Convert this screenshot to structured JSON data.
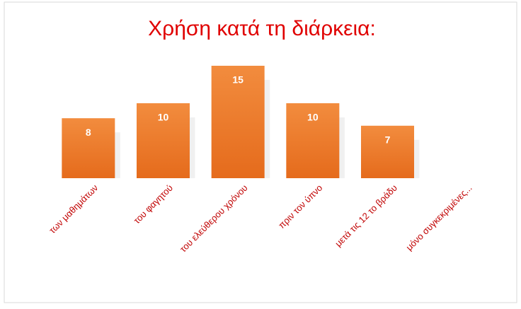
{
  "chart_data": {
    "type": "bar",
    "title": "Χρήση κατά τη διάρκεια:",
    "categories": [
      "των μαθημάτων",
      "του φαγητού",
      "του ελεύθερου χρόνου",
      "πριν τον ύπνο",
      "μετά τις 12 το βράδυ",
      "μόνο συγκεκριμένες..."
    ],
    "values": [
      8,
      10,
      15,
      10,
      7,
      0
    ],
    "color": "#ed7d31"
  }
}
